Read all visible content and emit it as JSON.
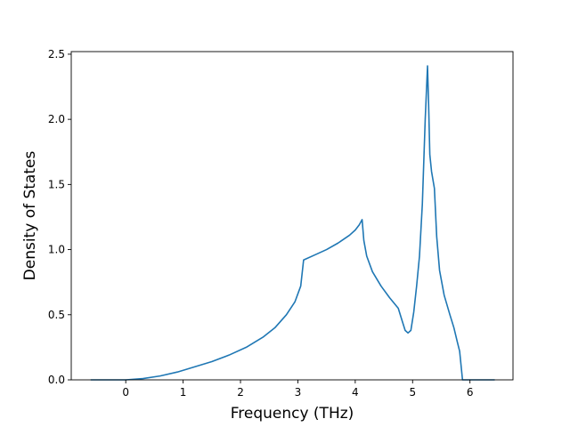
{
  "chart_data": {
    "type": "line",
    "title": "",
    "xlabel": "Frequency (THz)",
    "ylabel": "Density of States",
    "xlim": [
      -0.95,
      6.75
    ],
    "ylim": [
      0.0,
      2.52
    ],
    "xticks": [
      0,
      1,
      2,
      3,
      4,
      5,
      6
    ],
    "yticks": [
      0.0,
      0.5,
      1.0,
      1.5,
      2.0,
      2.5
    ],
    "xtick_labels": [
      "0",
      "1",
      "2",
      "3",
      "4",
      "5",
      "6"
    ],
    "ytick_labels": [
      "0.0",
      "0.5",
      "1.0",
      "1.5",
      "2.0",
      "2.5"
    ],
    "grid": false,
    "legend": "none",
    "line_color": "#1f77b4",
    "series": [
      {
        "x": [
          -0.6,
          -0.3,
          0.0,
          0.3,
          0.6,
          0.9,
          1.2,
          1.5,
          1.8,
          2.1,
          2.4,
          2.6,
          2.8,
          2.95,
          3.05,
          3.1,
          3.3,
          3.5,
          3.7,
          3.9,
          4.0,
          4.07,
          4.12,
          4.15,
          4.2,
          4.3,
          4.45,
          4.6,
          4.75,
          4.82,
          4.87,
          4.92,
          4.97,
          5.02,
          5.07,
          5.12,
          5.17,
          5.22,
          5.26,
          5.28,
          5.3,
          5.33,
          5.38,
          5.42,
          5.47,
          5.55,
          5.65,
          5.72,
          5.78,
          5.82,
          5.87,
          6.0,
          6.2,
          6.42
        ],
        "y": [
          0.0,
          0.0,
          0.0,
          0.01,
          0.03,
          0.06,
          0.1,
          0.14,
          0.19,
          0.25,
          0.33,
          0.4,
          0.5,
          0.6,
          0.72,
          0.92,
          0.96,
          1.0,
          1.05,
          1.11,
          1.15,
          1.19,
          1.23,
          1.07,
          0.95,
          0.83,
          0.72,
          0.63,
          0.55,
          0.45,
          0.38,
          0.36,
          0.38,
          0.52,
          0.72,
          0.95,
          1.35,
          2.0,
          2.41,
          2.1,
          1.73,
          1.6,
          1.47,
          1.1,
          0.84,
          0.65,
          0.5,
          0.4,
          0.29,
          0.22,
          0.0,
          0.0,
          0.0,
          0.0
        ]
      }
    ]
  }
}
